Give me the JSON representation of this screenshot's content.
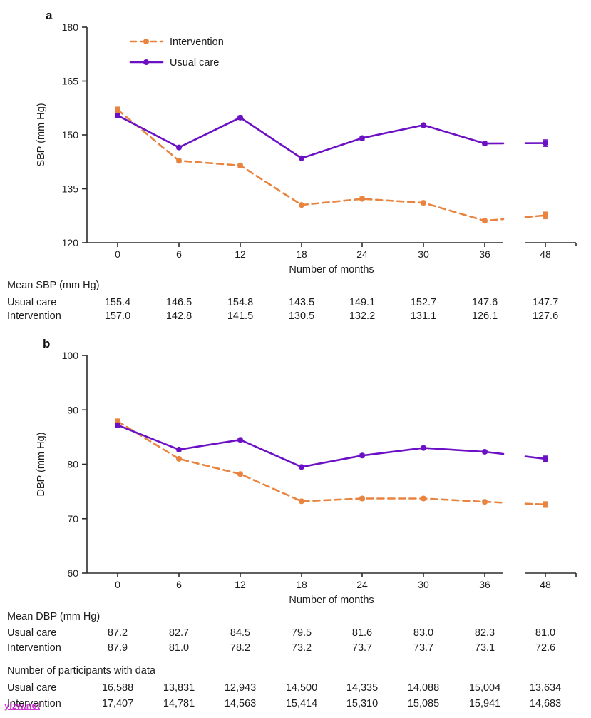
{
  "figure": {
    "panel_a_label": "a",
    "panel_b_label": "b",
    "xlabel": "Number of months",
    "x_tick_labels": [
      "0",
      "6",
      "12",
      "18",
      "24",
      "30",
      "36",
      "48"
    ]
  },
  "colors": {
    "intervention": "#E8843F",
    "usual_care": "#6B10C4",
    "text": "#1c1c1c",
    "axis": "#2b2b2b",
    "watermark": "#C318C9"
  },
  "chart_data": [
    {
      "type": "line",
      "panel": "a",
      "ylabel": "SBP (mm Hg)",
      "xlabel": "Number of months",
      "ylim": [
        120,
        180
      ],
      "yticks": [
        120,
        135,
        150,
        165,
        180
      ],
      "x": [
        0,
        6,
        12,
        18,
        24,
        30,
        36,
        48
      ],
      "x_axis_break_after": 36,
      "grid": false,
      "legend_position": "upper-left-inside",
      "series": [
        {
          "name": "Intervention",
          "style": "dashed",
          "marker": "circle",
          "color_key": "intervention",
          "values": [
            157.0,
            142.8,
            141.5,
            130.5,
            132.2,
            131.1,
            126.1,
            127.6
          ],
          "stderr_approx": [
            0.7,
            0.4,
            0.5,
            0.4,
            0.5,
            0.5,
            0.4,
            0.9
          ]
        },
        {
          "name": "Usual care",
          "style": "solid",
          "marker": "circle",
          "color_key": "usual_care",
          "values": [
            155.4,
            146.5,
            154.8,
            143.5,
            149.1,
            152.7,
            147.6,
            147.7
          ],
          "stderr_approx": [
            0.6,
            0.4,
            0.5,
            0.4,
            0.5,
            0.5,
            0.4,
            0.9
          ]
        }
      ]
    },
    {
      "type": "line",
      "panel": "b",
      "ylabel": "DBP (mm Hg)",
      "xlabel": "Number of months",
      "ylim": [
        60,
        100
      ],
      "yticks": [
        60,
        70,
        80,
        90,
        100
      ],
      "x": [
        0,
        6,
        12,
        18,
        24,
        30,
        36,
        48
      ],
      "x_axis_break_after": 36,
      "grid": false,
      "legend_position": "none",
      "series": [
        {
          "name": "Intervention",
          "style": "dashed",
          "marker": "circle",
          "color_key": "intervention",
          "values": [
            87.9,
            81.0,
            78.2,
            73.2,
            73.7,
            73.7,
            73.1,
            72.6
          ],
          "stderr_approx": [
            0.4,
            0.25,
            0.3,
            0.25,
            0.3,
            0.3,
            0.25,
            0.5
          ]
        },
        {
          "name": "Usual care",
          "style": "solid",
          "marker": "circle",
          "color_key": "usual_care",
          "values": [
            87.2,
            82.7,
            84.5,
            79.5,
            81.6,
            83.0,
            82.3,
            81.0
          ],
          "stderr_approx": [
            0.35,
            0.25,
            0.3,
            0.25,
            0.3,
            0.3,
            0.25,
            0.5
          ]
        }
      ]
    }
  ],
  "tables": [
    {
      "header": "Mean SBP (mm Hg)",
      "rows": [
        {
          "label": "Usual care",
          "values": [
            "155.4",
            "146.5",
            "154.8",
            "143.5",
            "149.1",
            "152.7",
            "147.6",
            "147.7"
          ]
        },
        {
          "label": "Intervention",
          "values": [
            "157.0",
            "142.8",
            "141.5",
            "130.5",
            "132.2",
            "131.1",
            "126.1",
            "127.6"
          ]
        }
      ]
    },
    {
      "header": "Mean DBP (mm Hg)",
      "rows": [
        {
          "label": "Usual care",
          "values": [
            "87.2",
            "82.7",
            "84.5",
            "79.5",
            "81.6",
            "83.0",
            "82.3",
            "81.0"
          ]
        },
        {
          "label": "Intervention",
          "values": [
            "87.9",
            "81.0",
            "78.2",
            "73.2",
            "73.7",
            "73.7",
            "73.1",
            "72.6"
          ]
        }
      ]
    },
    {
      "header": "Number of participants with data",
      "rows": [
        {
          "label": "Usual care",
          "values": [
            "16,588",
            "13,831",
            "12,943",
            "14,500",
            "14,335",
            "14,088",
            "15,004",
            "13,634"
          ]
        },
        {
          "label": "Intervention",
          "values": [
            "17,407",
            "14,781",
            "14,563",
            "15,414",
            "15,310",
            "15,085",
            "15,941",
            "14,683"
          ]
        }
      ]
    }
  ],
  "watermark": "ylzw.net"
}
